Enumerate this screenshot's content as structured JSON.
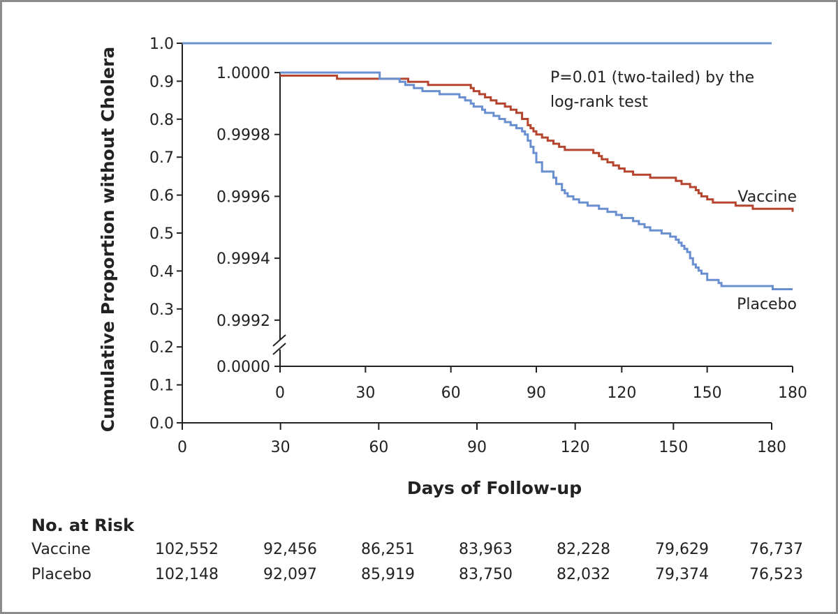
{
  "chart_data": {
    "type": "line",
    "title": "",
    "xlabel": "Days of Follow-up",
    "ylabel": "Cumulative Proportion without Cholera",
    "xlim": [
      0,
      180
    ],
    "ylim": [
      0.0,
      1.0
    ],
    "x_ticks": [
      "0",
      "30",
      "60",
      "90",
      "120",
      "150",
      "180"
    ],
    "y_ticks": [
      "0.0",
      "0.1",
      "0.2",
      "0.3",
      "0.4",
      "0.5",
      "0.6",
      "0.7",
      "0.8",
      "0.9",
      "1.0"
    ],
    "main_series_color": "#6a8fd0",
    "inset": {
      "xlim": [
        0,
        180
      ],
      "ylim": [
        0.99915,
        1.0
      ],
      "x_ticks": [
        "0",
        "30",
        "60",
        "90",
        "120",
        "150",
        "180"
      ],
      "y_ticks": [
        {
          "label": "1.0000",
          "value": 1.0
        },
        {
          "label": "0.9998",
          "value": 0.9998
        },
        {
          "label": "0.9996",
          "value": 0.9996
        },
        {
          "label": "0.9994",
          "value": 0.9994
        },
        {
          "label": "0.9992",
          "value": 0.9992
        }
      ],
      "break_label": "0.0000",
      "annotation": [
        "P=0.01 (two-tailed) by the",
        "log-rank test"
      ],
      "series": [
        {
          "name": "Vaccine",
          "color": "#b5452f",
          "x": [
            0,
            10,
            18,
            20,
            28,
            38,
            45,
            48,
            52,
            58,
            62,
            66,
            67,
            68,
            70,
            72,
            74,
            76,
            79,
            81,
            83,
            85,
            87,
            88,
            89,
            90,
            92,
            94,
            96,
            98,
            100,
            104,
            105,
            106,
            108,
            110,
            112,
            113,
            115,
            117,
            119,
            121,
            124,
            126,
            128,
            130,
            135,
            137,
            139,
            141,
            144,
            146,
            147,
            148,
            150,
            152,
            154,
            155,
            160,
            166,
            175,
            180
          ],
          "values": [
            0.99999,
            0.99999,
            0.99999,
            0.99998,
            0.99998,
            0.99998,
            0.99997,
            0.99997,
            0.99996,
            0.99996,
            0.99996,
            0.99996,
            0.99995,
            0.99994,
            0.99993,
            0.99992,
            0.99991,
            0.9999,
            0.99989,
            0.99988,
            0.99987,
            0.99985,
            0.99983,
            0.99982,
            0.99981,
            0.9998,
            0.99979,
            0.99978,
            0.99977,
            0.99976,
            0.99975,
            0.99975,
            0.99975,
            0.99975,
            0.99975,
            0.99974,
            0.99973,
            0.99972,
            0.99971,
            0.9997,
            0.99969,
            0.99968,
            0.99967,
            0.99967,
            0.99967,
            0.99966,
            0.99966,
            0.99966,
            0.99965,
            0.99964,
            0.99963,
            0.99962,
            0.99961,
            0.9996,
            0.99959,
            0.99958,
            0.99958,
            0.99958,
            0.99957,
            0.99956,
            0.99956,
            0.99955
          ]
        },
        {
          "name": "Placebo",
          "color": "#6a8fd0",
          "x": [
            0,
            34,
            35,
            40,
            42,
            44,
            47,
            50,
            52,
            56,
            62,
            63,
            65,
            67,
            68,
            71,
            72,
            75,
            77,
            79,
            81,
            83,
            85,
            86,
            87,
            88,
            89,
            90,
            92,
            94,
            95,
            96,
            97,
            99,
            100,
            101,
            103,
            105,
            108,
            112,
            115,
            118,
            120,
            124,
            126,
            128,
            130,
            134,
            137,
            139,
            140,
            141,
            142,
            143,
            144,
            145,
            146,
            147,
            148,
            150,
            152,
            154,
            155,
            160,
            168,
            173,
            180
          ],
          "values": [
            1.0,
            1.0,
            0.99998,
            0.99998,
            0.99997,
            0.99996,
            0.99995,
            0.99994,
            0.99994,
            0.99993,
            0.99993,
            0.99992,
            0.99991,
            0.9999,
            0.99989,
            0.99988,
            0.99987,
            0.99986,
            0.99985,
            0.99984,
            0.99983,
            0.99982,
            0.99981,
            0.9998,
            0.99978,
            0.99976,
            0.99974,
            0.99971,
            0.99968,
            0.99968,
            0.99968,
            0.99966,
            0.99964,
            0.99962,
            0.99961,
            0.9996,
            0.99959,
            0.99958,
            0.99957,
            0.99956,
            0.99955,
            0.99954,
            0.99953,
            0.99952,
            0.99951,
            0.9995,
            0.99949,
            0.99948,
            0.99947,
            0.99946,
            0.99945,
            0.99944,
            0.99943,
            0.99942,
            0.9994,
            0.99938,
            0.99937,
            0.99936,
            0.99935,
            0.99933,
            0.99933,
            0.99932,
            0.99931,
            0.99931,
            0.99931,
            0.9993,
            0.9993
          ]
        }
      ]
    }
  },
  "risk_table": {
    "title": "No. at Risk",
    "rows": [
      {
        "label": "Vaccine",
        "values": [
          "102,552",
          "92,456",
          "86,251",
          "83,963",
          "82,228",
          "79,629",
          "76,737"
        ]
      },
      {
        "label": "Placebo",
        "values": [
          "102,148",
          "92,097",
          "85,919",
          "83,750",
          "82,032",
          "79,374",
          "76,523"
        ]
      }
    ]
  }
}
